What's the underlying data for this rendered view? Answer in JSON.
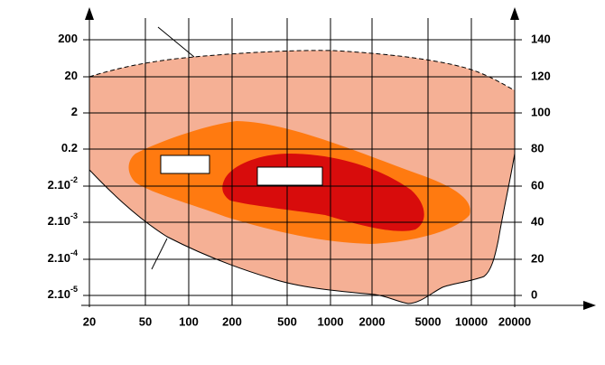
{
  "axes": {
    "x_labels": [
      "20",
      "50",
      "100",
      "200",
      "500",
      "1000",
      "2000",
      "5000",
      "10000",
      "20000"
    ],
    "y_left_labels": [
      {
        "base": "200"
      },
      {
        "base": "20"
      },
      {
        "base": "2"
      },
      {
        "base": "0.2"
      },
      {
        "base": "2.10",
        "exp": "-2"
      },
      {
        "base": "2.10",
        "exp": "-3"
      },
      {
        "base": "2.10",
        "exp": "-4"
      },
      {
        "base": "2.10",
        "exp": "-5"
      }
    ],
    "y_right_labels": [
      "140",
      "120",
      "100",
      "80",
      "60",
      "40",
      "20",
      "0"
    ]
  }
}
